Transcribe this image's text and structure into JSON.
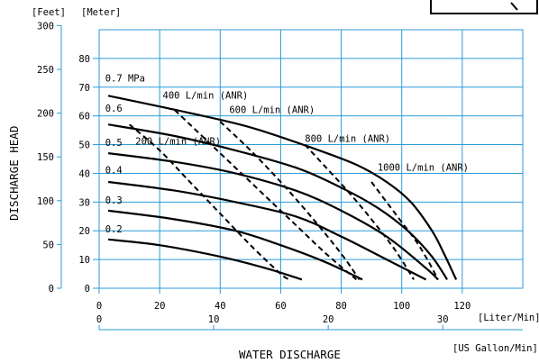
{
  "chart_data": {
    "type": "line",
    "title": "",
    "xlabel": "WATER DISCHARGE",
    "ylabel": "DISCHARGE HEAD",
    "x_units": [
      "[Liter/Min]",
      "[US Gallon/Min]"
    ],
    "y_units": [
      "[Feet]",
      "[Meter]"
    ],
    "x_liter_ticks": [
      0,
      20,
      40,
      60,
      80,
      100,
      120
    ],
    "x_gallon_ticks": [
      0,
      10,
      20,
      30
    ],
    "y_meter_ticks": [
      0,
      10,
      20,
      30,
      40,
      50,
      60,
      70,
      80
    ],
    "y_feet_ticks": [
      0,
      50,
      100,
      150,
      200,
      250,
      300
    ],
    "xlim": [
      0,
      140
    ],
    "ylim": [
      0,
      90
    ],
    "grid": true,
    "pressure_series": [
      {
        "name": "0.7 MPa",
        "x": [
          3,
          30,
          50,
          70,
          85,
          95,
          103,
          110,
          114,
          118
        ],
        "y": [
          67,
          61,
          56,
          49,
          43,
          37,
          30,
          20,
          12,
          3
        ]
      },
      {
        "name": "0.6",
        "x": [
          3,
          25,
          45,
          65,
          80,
          92,
          102,
          110,
          115
        ],
        "y": [
          57,
          53,
          48,
          42,
          35,
          28,
          20,
          11,
          3
        ]
      },
      {
        "name": "0.5",
        "x": [
          3,
          25,
          45,
          65,
          80,
          95,
          108,
          112
        ],
        "y": [
          47,
          44,
          40,
          34,
          27,
          18,
          7,
          3
        ]
      },
      {
        "name": "0.4",
        "x": [
          3,
          25,
          45,
          65,
          80,
          95,
          108
        ],
        "y": [
          37,
          34,
          30,
          25,
          18,
          10,
          3
        ]
      },
      {
        "name": "0.3",
        "x": [
          3,
          25,
          45,
          60,
          75,
          87
        ],
        "y": [
          27,
          24,
          20,
          15,
          9,
          3
        ]
      },
      {
        "name": "0.2",
        "x": [
          3,
          20,
          40,
          55,
          67
        ],
        "y": [
          17,
          15,
          11,
          7,
          3
        ]
      }
    ],
    "air_series": [
      {
        "name": "200 L/min (ANR)",
        "x": [
          10,
          20,
          30,
          40,
          50,
          60,
          63
        ],
        "y": [
          57,
          48,
          37,
          26,
          15,
          5,
          3
        ]
      },
      {
        "name": "400 L/min (ANR)",
        "x": [
          25,
          35,
          45,
          55,
          65,
          75,
          85
        ],
        "y": [
          62,
          52,
          42,
          32,
          22,
          12,
          3
        ]
      },
      {
        "name": "600 L/min (ANR)",
        "x": [
          40,
          50,
          60,
          70,
          80,
          86
        ],
        "y": [
          58,
          48,
          37,
          25,
          12,
          3
        ]
      },
      {
        "name": "800 L/min (ANR)",
        "x": [
          68,
          75,
          82,
          90,
          98,
          104
        ],
        "y": [
          50,
          42,
          34,
          24,
          13,
          3
        ]
      },
      {
        "name": "1000 L/min (ANR)",
        "x": [
          90,
          95,
          100,
          105,
          109,
          112
        ],
        "y": [
          37,
          30,
          23,
          16,
          9,
          3
        ]
      }
    ],
    "labels": {
      "p07": "0.7 MPa",
      "p06": "0.6",
      "p05": "0.5",
      "p04": "0.4",
      "p03": "0.3",
      "p02": "0.2",
      "a200": "200 L/min (ANR)",
      "a400": "400 L/min (ANR)",
      "a600": "600 L/min (ANR)",
      "a800": "800 L/min (ANR)",
      "a1000": "1000 L/min (ANR)"
    },
    "colors": {
      "grid": "#2b9bd8",
      "line": "#000000"
    }
  }
}
